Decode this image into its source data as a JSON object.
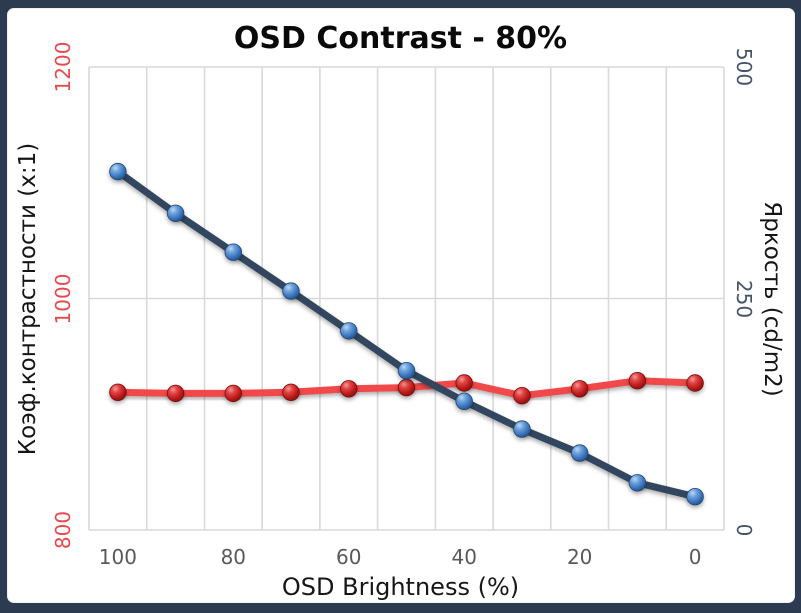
{
  "window": {
    "frame_color": "#2c3b4f",
    "panel_color": "#ffffff"
  },
  "chart_data": {
    "type": "line",
    "title": "OSD Contrast - 80%",
    "categories": [
      100,
      90,
      80,
      70,
      60,
      50,
      40,
      30,
      20,
      10,
      0
    ],
    "x_axis": {
      "label": "OSD Brightness (%)",
      "tick_labels": [
        "100",
        "80",
        "60",
        "40",
        "20",
        "0"
      ],
      "tick_color": "#595959"
    },
    "left_axis": {
      "label": "Коэф.контрастности (x:1)",
      "tick_labels": [
        "1200",
        "1000",
        "800"
      ],
      "tick_values": [
        1200,
        1000,
        800
      ],
      "range": [
        800,
        1200
      ],
      "tick_color": "#e8494c"
    },
    "right_axis": {
      "label": "Яркость (cd/m2)",
      "tick_labels": [
        "500",
        "250",
        "0"
      ],
      "tick_values": [
        500,
        250,
        0
      ],
      "range": [
        0,
        500
      ],
      "tick_color": "#44546a"
    },
    "series": [
      {
        "name": "Коэф.контрастности (x:1)",
        "axis": "left",
        "line_color": "#f14949",
        "marker_color": "#c01c1c",
        "values": [
          919,
          918,
          918,
          919,
          922,
          923,
          927,
          916,
          922,
          929,
          927
        ]
      },
      {
        "name": "Яркость (cd/m2)",
        "axis": "right",
        "line_color": "#33475e",
        "marker_color": "#4178c0",
        "values": [
          387,
          342,
          300,
          258,
          215,
          172,
          139,
          109,
          83,
          51,
          36
        ]
      }
    ],
    "grid": {
      "color": "#d9d9d9",
      "vertical_divisions": 11,
      "horizontal_lines_at_left_values": [
        1200,
        1000,
        800
      ]
    },
    "legend": "none"
  }
}
